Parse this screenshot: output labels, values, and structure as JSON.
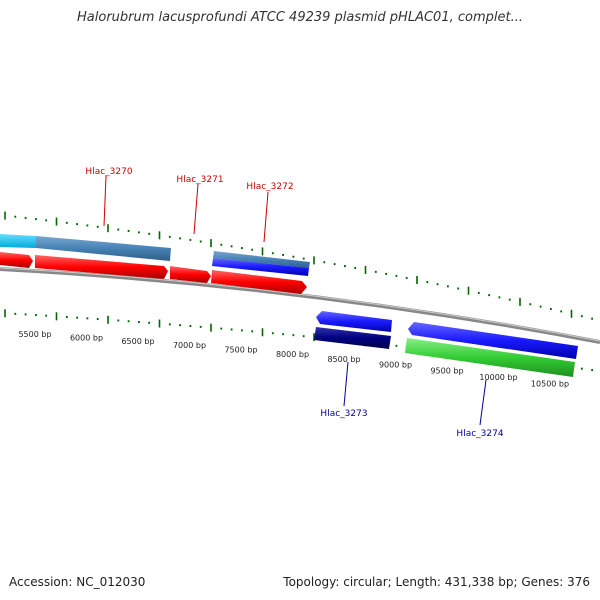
{
  "title": "Halorubrum lacusprofundi ATCC 49239 plasmid pHLAC01, complet...",
  "footer": {
    "accession": "Accession: NC_012030",
    "topology": "Topology: circular; Length: 431,338 bp; Genes: 376"
  },
  "colors": {
    "forward_cds": "#1a1aff",
    "forward_cds_dark": "#000080",
    "reverse_cds": "#ff0000",
    "rna": "#33cc33",
    "other": "#4682b4",
    "label_forward": "#cc0000",
    "label_reverse": "#000099",
    "tick": "#006600",
    "backbone": "#888888"
  },
  "scale_labels": [
    "5500 bp",
    "6000 bp",
    "6500 bp",
    "7000 bp",
    "7500 bp",
    "8000 bp",
    "8500 bp",
    "9000 bp",
    "9500 bp",
    "10000 bp",
    "10500 bp"
  ],
  "gene_labels": [
    {
      "id": "g3270",
      "text": "Hlac_3270",
      "strand": "top"
    },
    {
      "id": "g3271",
      "text": "Hlac_3271",
      "strand": "top"
    },
    {
      "id": "g3272",
      "text": "Hlac_3272",
      "strand": "top"
    },
    {
      "id": "g3273",
      "text": "Hlac_3273",
      "strand": "bottom"
    },
    {
      "id": "g3274",
      "text": "Hlac_3274",
      "strand": "bottom"
    }
  ]
}
